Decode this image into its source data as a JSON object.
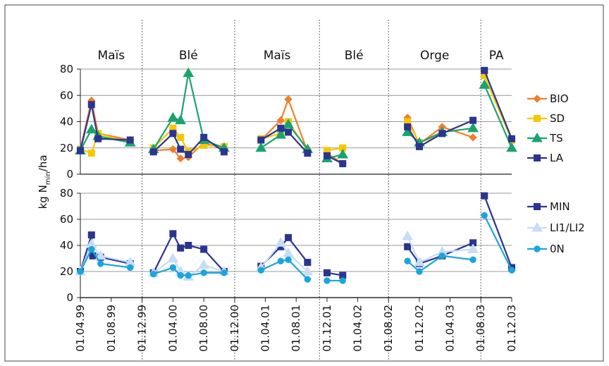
{
  "chart_data": [
    {
      "type": "line",
      "ylim": [
        0,
        80
      ],
      "yticks": [
        "0",
        "20",
        "40",
        "60",
        "80"
      ],
      "grid": true,
      "legend_position": "right",
      "series": [
        {
          "name": "BIO",
          "color": "#f07f2a",
          "marker": "diamond",
          "points": [
            [
              "1999-04-01",
              19
            ],
            [
              "1999-05-15",
              56
            ],
            [
              "1999-06-10",
              31
            ],
            [
              "1999-10-15",
              26
            ],
            [
              null,
              null
            ],
            [
              "2000-01-15",
              18
            ],
            [
              "2000-04-01",
              19
            ],
            [
              "2000-05-01",
              12
            ],
            [
              "2000-06-01",
              13
            ],
            [
              "2000-08-01",
              24
            ],
            [
              "2000-10-20",
              19
            ],
            [
              null,
              null
            ],
            [
              "2001-03-15",
              26
            ],
            [
              "2001-06-01",
              41
            ],
            [
              "2001-07-01",
              57
            ],
            [
              "2001-09-15",
              17
            ],
            [
              null,
              null
            ],
            [
              "2001-12-01",
              16
            ],
            [
              "2002-02-01",
              8
            ],
            [
              null,
              null
            ],
            [
              "2002-10-15",
              43
            ],
            [
              "2002-12-01",
              23
            ],
            [
              "2003-03-01",
              36
            ],
            [
              "2003-07-01",
              28
            ]
          ]
        },
        {
          "name": "SD",
          "color": "#f7c600",
          "marker": "square",
          "points": [
            [
              "1999-04-01",
              19
            ],
            [
              "1999-05-15",
              16
            ],
            [
              "1999-06-10",
              31
            ],
            [
              "1999-10-15",
              24
            ],
            [
              null,
              null
            ],
            [
              "2000-01-15",
              20
            ],
            [
              "2000-04-01",
              35
            ],
            [
              "2000-05-01",
              28
            ],
            [
              "2000-06-01",
              17
            ],
            [
              "2000-08-01",
              22
            ],
            [
              "2000-10-20",
              21
            ],
            [
              null,
              null
            ],
            [
              "2001-03-15",
              27
            ],
            [
              "2001-06-01",
              31
            ],
            [
              "2001-07-01",
              40
            ],
            [
              "2001-09-15",
              18
            ],
            [
              null,
              null
            ],
            [
              "2001-12-01",
              18
            ],
            [
              "2002-02-01",
              20
            ],
            [
              null,
              null
            ],
            [
              "2002-10-15",
              40
            ],
            [
              "2002-12-01",
              24
            ],
            [
              "2003-03-01",
              31
            ],
            [
              "2003-07-01",
              41
            ],
            [
              null,
              null
            ],
            [
              "2003-08-15",
              75
            ],
            [
              "2003-12-01",
              26
            ]
          ]
        },
        {
          "name": "TS",
          "color": "#1aa36f",
          "marker": "triangle",
          "points": [
            [
              "1999-04-01",
              18
            ],
            [
              "1999-05-15",
              34
            ],
            [
              "1999-06-10",
              29
            ],
            [
              "1999-10-15",
              24
            ],
            [
              null,
              null
            ],
            [
              "2000-01-15",
              19
            ],
            [
              "2000-04-01",
              43
            ],
            [
              "2000-05-01",
              41
            ],
            [
              "2000-06-01",
              77
            ],
            [
              "2000-08-01",
              26
            ],
            [
              "2000-10-20",
              20
            ],
            [
              null,
              null
            ],
            [
              "2001-03-15",
              20
            ],
            [
              "2001-06-01",
              30
            ],
            [
              "2001-07-01",
              38
            ],
            [
              "2001-09-15",
              19
            ],
            [
              null,
              null
            ],
            [
              "2001-12-01",
              12
            ],
            [
              "2002-02-01",
              15
            ],
            [
              null,
              null
            ],
            [
              "2002-10-15",
              32
            ],
            [
              "2002-12-01",
              24
            ],
            [
              "2003-03-01",
              32
            ],
            [
              "2003-07-01",
              35
            ],
            [
              null,
              null
            ],
            [
              "2003-08-15",
              68
            ],
            [
              "2003-12-01",
              20
            ]
          ]
        },
        {
          "name": "LA",
          "color": "#2b3590",
          "marker": "square",
          "points": [
            [
              "1999-04-01",
              18
            ],
            [
              "1999-05-15",
              53
            ],
            [
              "1999-06-10",
              27
            ],
            [
              "1999-10-15",
              26
            ],
            [
              null,
              null
            ],
            [
              "2000-01-15",
              17
            ],
            [
              "2000-04-01",
              31
            ],
            [
              "2000-05-01",
              19
            ],
            [
              "2000-06-01",
              15
            ],
            [
              "2000-08-01",
              28
            ],
            [
              "2000-10-20",
              17
            ],
            [
              null,
              null
            ],
            [
              "2001-03-15",
              26
            ],
            [
              "2001-06-01",
              35
            ],
            [
              "2001-07-01",
              32
            ],
            [
              "2001-09-15",
              16
            ],
            [
              null,
              null
            ],
            [
              "2001-12-01",
              14
            ],
            [
              "2002-02-01",
              8
            ],
            [
              null,
              null
            ],
            [
              "2002-10-15",
              36
            ],
            [
              "2002-12-01",
              21
            ],
            [
              "2003-03-01",
              31
            ],
            [
              "2003-07-01",
              41
            ],
            [
              null,
              null
            ],
            [
              "2003-08-15",
              79
            ],
            [
              "2003-12-01",
              27
            ]
          ]
        }
      ]
    },
    {
      "type": "line",
      "ylim": [
        0,
        80
      ],
      "yticks": [
        "0",
        "20",
        "40",
        "60",
        "80"
      ],
      "grid": true,
      "legend_position": "right",
      "series": [
        {
          "name": "MIN",
          "color": "#2b3590",
          "marker": "square",
          "points": [
            [
              "1999-04-01",
              20
            ],
            [
              "1999-05-15",
              48
            ],
            [
              "1999-05-20",
              32
            ],
            [
              "1999-06-20",
              31
            ],
            [
              "1999-10-15",
              26
            ],
            [
              null,
              null
            ],
            [
              "2000-01-15",
              19
            ],
            [
              "2000-04-01",
              49
            ],
            [
              "2000-05-01",
              38
            ],
            [
              "2000-06-01",
              40
            ],
            [
              "2000-08-01",
              37
            ],
            [
              "2000-10-20",
              20
            ],
            [
              null,
              null
            ],
            [
              "2001-03-15",
              24
            ],
            [
              "2001-06-01",
              39
            ],
            [
              "2001-07-01",
              46
            ],
            [
              "2001-09-15",
              27
            ],
            [
              null,
              null
            ],
            [
              "2001-12-01",
              19
            ],
            [
              "2002-02-01",
              17
            ],
            [
              null,
              null
            ],
            [
              "2002-10-15",
              39
            ],
            [
              "2002-12-01",
              26
            ],
            [
              "2003-03-01",
              32
            ],
            [
              "2003-07-01",
              42
            ],
            [
              null,
              null
            ],
            [
              "2003-08-15",
              78
            ],
            [
              "2003-12-01",
              23
            ]
          ]
        },
        {
          "name": "LI1/LI2",
          "color": "#c8dcf4",
          "marker": "triangle",
          "points": [
            [
              "1999-04-01",
              20
            ],
            [
              "1999-05-15",
              41
            ],
            [
              "1999-06-20",
              32
            ],
            [
              "1999-10-15",
              27
            ],
            [
              null,
              null
            ],
            [
              "2000-01-15",
              19
            ],
            [
              "2000-04-01",
              30
            ],
            [
              "2000-05-01",
              20
            ],
            [
              "2000-06-01",
              16
            ],
            [
              "2000-08-01",
              25
            ],
            [
              "2000-10-20",
              20
            ],
            [
              null,
              null
            ],
            [
              "2001-03-15",
              23
            ],
            [
              "2001-06-01",
              42
            ],
            [
              "2001-07-01",
              34
            ],
            [
              "2001-09-15",
              20
            ],
            [
              null,
              null
            ],
            [
              "2002-10-15",
              47
            ],
            [
              "2002-12-01",
              27
            ],
            [
              "2003-03-01",
              35
            ],
            [
              "2003-07-01",
              37
            ]
          ]
        },
        {
          "name": "0N",
          "color": "#19a6dc",
          "marker": "circle",
          "points": [
            [
              "1999-04-01",
              20
            ],
            [
              "1999-05-15",
              37
            ],
            [
              "1999-06-20",
              26
            ],
            [
              "1999-10-15",
              23
            ],
            [
              null,
              null
            ],
            [
              "2000-01-15",
              18
            ],
            [
              "2000-04-01",
              23
            ],
            [
              "2000-05-01",
              17
            ],
            [
              "2000-06-01",
              17
            ],
            [
              "2000-08-01",
              19
            ],
            [
              "2000-10-20",
              19
            ],
            [
              null,
              null
            ],
            [
              "2001-03-15",
              21
            ],
            [
              "2001-06-01",
              28
            ],
            [
              "2001-07-01",
              29
            ],
            [
              "2001-09-15",
              14
            ],
            [
              null,
              null
            ],
            [
              "2001-12-01",
              13
            ],
            [
              "2002-02-01",
              13
            ],
            [
              null,
              null
            ],
            [
              "2002-10-15",
              28
            ],
            [
              "2002-12-01",
              20
            ],
            [
              "2003-03-01",
              32
            ],
            [
              "2003-07-01",
              29
            ],
            [
              null,
              null
            ],
            [
              "2003-08-15",
              63
            ],
            [
              "2003-12-01",
              21
            ]
          ]
        }
      ]
    }
  ],
  "crop_labels": [
    "Maïs",
    "Blé",
    "Maïs",
    "Blé",
    "Orge",
    "PA"
  ],
  "ylabel": {
    "main": "kg N",
    "sub": "min",
    "tail": "/ha"
  },
  "x_axis": {
    "min": "1999-04-01",
    "max": "2003-12-01",
    "tick_dates": [
      "1999-04-01",
      "1999-08-01",
      "1999-12-01",
      "2000-04-01",
      "2000-08-01",
      "2000-12-01",
      "2001-04-01",
      "2001-08-01",
      "2001-12-01",
      "2002-04-01",
      "2002-08-01",
      "2002-12-01",
      "2003-04-01",
      "2003-08-01",
      "2003-12-01"
    ],
    "tick_labels": [
      "01.04.99",
      "01.08.99",
      "01.12.99",
      "01.04.00",
      "01.08.00",
      "01.12.00",
      "01.04.01",
      "01.08.01",
      "01.12.01",
      "01.04.02",
      "01.08.02",
      "01.12.02",
      "01.04.03",
      "01.08.03",
      "01.12.03"
    ],
    "season_dividers": [
      "1999-12-01",
      "2000-12-01",
      "2001-11-01",
      "2002-08-01",
      "2003-08-01"
    ]
  }
}
